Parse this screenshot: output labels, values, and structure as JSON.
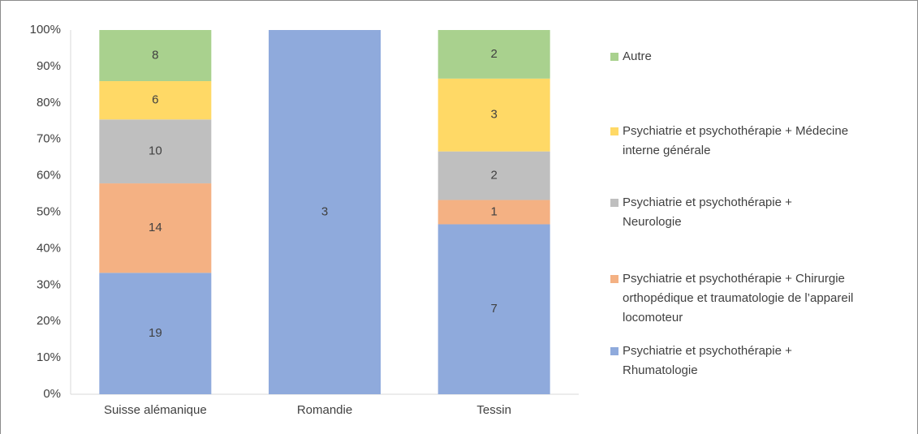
{
  "chart_data": {
    "type": "bar",
    "stacking": "percent",
    "categories": [
      "Suisse alémanique",
      "Romandie",
      "Tessin"
    ],
    "series": [
      {
        "name": "Psychiatrie et psychothérapie + Rhumatologie",
        "color": "#8faadc",
        "values": [
          19,
          3,
          7
        ]
      },
      {
        "name": "Psychiatrie et psychothérapie + Chirurgie orthopédique et traumatologie de l’appareil locomoteur",
        "color": "#f4b183",
        "values": [
          14,
          0,
          1
        ]
      },
      {
        "name": "Psychiatrie et psychothérapie + Neurologie",
        "color": "#bfbfbf",
        "values": [
          10,
          0,
          2
        ]
      },
      {
        "name": "Psychiatrie et psychothérapie + Médecine interne générale",
        "color": "#ffd966",
        "values": [
          6,
          0,
          3
        ]
      },
      {
        "name": "Autre",
        "color": "#a9d18e",
        "values": [
          8,
          0,
          2
        ]
      }
    ],
    "ylim": [
      0,
      100
    ],
    "yticks": [
      {
        "value": 0,
        "label": "0%"
      },
      {
        "value": 10,
        "label": "10%"
      },
      {
        "value": 20,
        "label": "20%"
      },
      {
        "value": 30,
        "label": "30%"
      },
      {
        "value": 40,
        "label": "40%"
      },
      {
        "value": 50,
        "label": "50%"
      },
      {
        "value": 60,
        "label": "60%"
      },
      {
        "value": 70,
        "label": "70%"
      },
      {
        "value": 80,
        "label": "80%"
      },
      {
        "value": 90,
        "label": "90%"
      },
      {
        "value": 100,
        "label": "100%"
      }
    ],
    "legend": "right"
  }
}
